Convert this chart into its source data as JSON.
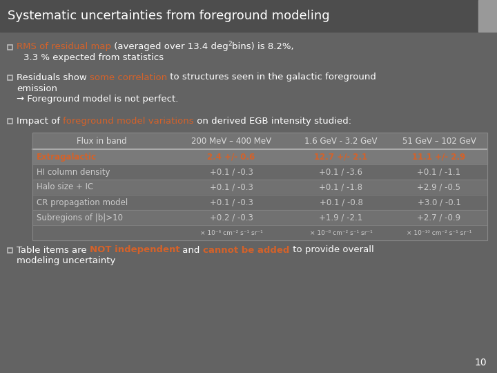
{
  "title": "Systematic uncertainties from foreground modeling",
  "bg_dark": "#4a4a4a",
  "bg_slide": "#636363",
  "bg_title": "#4d4d4d",
  "bg_title_right": "#999999",
  "orange": "#d4622a",
  "white": "#ffffff",
  "gray_text": "#cccccc",
  "table_header_bg": "#747474",
  "table_extragalactic_bg": "#7a7a7a",
  "table_row_bg1": "#6a6a6a",
  "table_row_bg2": "#737373",
  "table_units_bg": "#6a6a6a",
  "table_header": [
    "Flux in band",
    "200 MeV – 400 MeV",
    "1.6 GeV - 3.2 GeV",
    "51 GeV – 102 GeV"
  ],
  "table_rows": [
    [
      "Extragalactic",
      "2.4 +/- 0.6",
      "12.7 +/- 2.1",
      "11.1 +/- 2.9"
    ],
    [
      "HI column density",
      "+0.1 / -0.3",
      "+0.1 / -3.6",
      "+0.1 / -1.1"
    ],
    [
      "Halo size + IC",
      "+0.1 / -0.3",
      "+0.1 / -1.8",
      "+2.9 / -0.5"
    ],
    [
      "CR propagation model",
      "+0.1 / -0.3",
      "+0.1 / -0.8",
      "+3.0 / -0.1"
    ],
    [
      "Subregions of |b|>10",
      "+0.2 / -0.3",
      "+1.9 / -2.1",
      "+2.7 / -0.9"
    ],
    [
      "",
      "× 10⁻⁶ cm⁻² s⁻¹ sr⁻¹",
      "× 10⁻⁸ cm⁻² s⁻¹ sr⁻¹",
      "× 10⁻¹⁰ cm⁻² s⁻¹ sr⁻¹"
    ]
  ],
  "page_number": "10"
}
